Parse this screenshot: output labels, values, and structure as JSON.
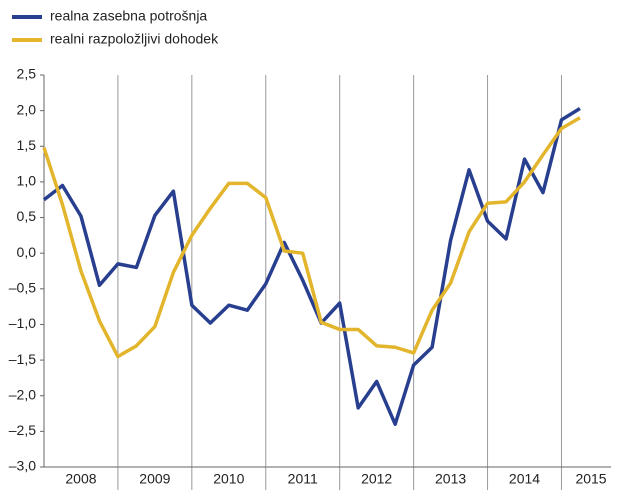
{
  "chart_data": {
    "type": "line",
    "x": [
      2008,
      2008.25,
      2008.5,
      2008.75,
      2009,
      2009.25,
      2009.5,
      2009.75,
      2010,
      2010.25,
      2010.5,
      2010.75,
      2011,
      2011.25,
      2011.5,
      2011.75,
      2012,
      2012.25,
      2012.5,
      2012.75,
      2013,
      2013.25,
      2013.5,
      2013.75,
      2014,
      2014.25,
      2014.5,
      2014.75,
      2015,
      2015.25
    ],
    "series": [
      {
        "name": "realna zasebna potrošnja",
        "color": "#283f8f",
        "values": [
          0.75,
          0.95,
          0.52,
          -0.45,
          -0.15,
          -0.2,
          0.53,
          0.87,
          -0.73,
          -0.98,
          -0.73,
          -0.8,
          -0.43,
          0.15,
          -0.38,
          -0.98,
          -0.7,
          -2.17,
          -1.8,
          -2.4,
          -1.57,
          -1.32,
          0.18,
          1.17,
          0.45,
          0.2,
          1.32,
          0.85,
          1.87,
          2.03
        ]
      },
      {
        "name": "realni razpoložljivi dohodek",
        "color": "#e3b52c",
        "values": [
          1.48,
          0.68,
          -0.25,
          -0.95,
          -1.45,
          -1.3,
          -1.03,
          -0.27,
          0.25,
          0.63,
          0.98,
          0.98,
          0.78,
          0.03,
          0.0,
          -0.97,
          -1.07,
          -1.07,
          -1.3,
          -1.32,
          -1.4,
          -0.8,
          -0.42,
          0.3,
          0.7,
          0.72,
          1.0,
          1.38,
          1.75,
          1.9
        ]
      }
    ],
    "xlim": [
      2008,
      2015.67
    ],
    "xticks": [
      {
        "value": 2008.5,
        "label": "2008"
      },
      {
        "value": 2009.5,
        "label": "2009"
      },
      {
        "value": 2010.5,
        "label": "2010"
      },
      {
        "value": 2011.5,
        "label": "2011"
      },
      {
        "value": 2012.5,
        "label": "2012"
      },
      {
        "value": 2013.5,
        "label": "2013"
      },
      {
        "value": 2014.5,
        "label": "2014"
      },
      {
        "value": 2015.4,
        "label": "2015"
      }
    ],
    "xgrid": [
      2009,
      2010,
      2011,
      2012,
      2013,
      2014,
      2015
    ],
    "ylim": [
      -3.0,
      2.5
    ],
    "yticks": [
      {
        "value": 2.5,
        "label": "2,5"
      },
      {
        "value": 2.0,
        "label": "2,0"
      },
      {
        "value": 1.5,
        "label": "1,5"
      },
      {
        "value": 1.0,
        "label": "1,0"
      },
      {
        "value": 0.5,
        "label": "0,5"
      },
      {
        "value": 0.0,
        "label": "0,0"
      },
      {
        "value": -0.5,
        "label": "–0,5"
      },
      {
        "value": -1.0,
        "label": "–1,0"
      },
      {
        "value": -1.5,
        "label": "–1,5"
      },
      {
        "value": -2.0,
        "label": "–2,0"
      },
      {
        "value": -2.5,
        "label": "–2,5"
      },
      {
        "value": -3.0,
        "label": "–3,0"
      }
    ],
    "legend": "top-left"
  }
}
